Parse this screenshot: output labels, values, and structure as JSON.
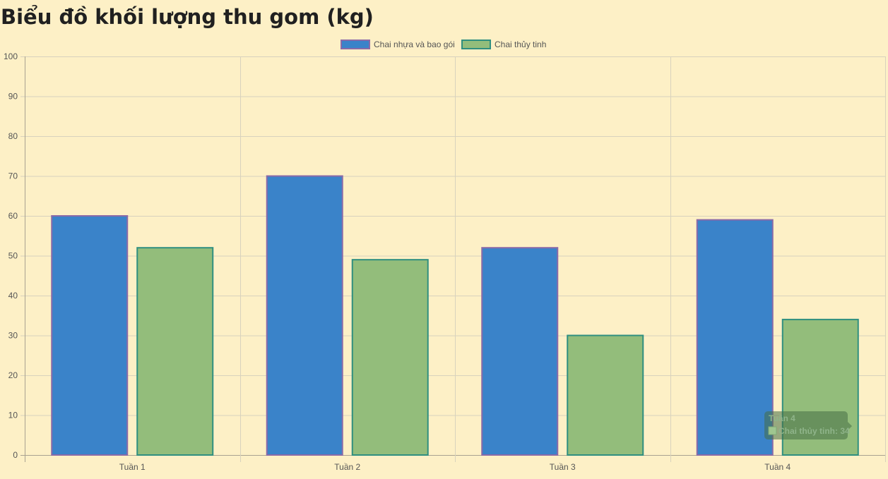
{
  "chart_data": {
    "type": "bar",
    "title": "Biểu đồ khối lượng thu gom (kg)",
    "categories": [
      "Tuần 1",
      "Tuần 2",
      "Tuần 3",
      "Tuần 4"
    ],
    "series": [
      {
        "name": "Chai nhựa và bao gói",
        "values": [
          60,
          70,
          52,
          59
        ],
        "color": "#3a83c9",
        "border": "#8a6aa8"
      },
      {
        "name": "Chai thủy tinh",
        "values": [
          52,
          49,
          30,
          34
        ],
        "color": "#93bd7b",
        "border": "#2f8f80"
      }
    ],
    "ylim": [
      0,
      100
    ],
    "yticks": [
      0,
      10,
      20,
      30,
      40,
      50,
      60,
      70,
      80,
      90,
      100
    ],
    "xlabel": "",
    "ylabel": "",
    "grid": true,
    "legend_position": "top-center"
  },
  "tooltip": {
    "title": "Tuần 4",
    "line": "Chai thủy tinh: 34"
  },
  "colors": {
    "background": "#fdf0c6",
    "grid": "#d8d2bd",
    "axis": "#a8a291"
  }
}
